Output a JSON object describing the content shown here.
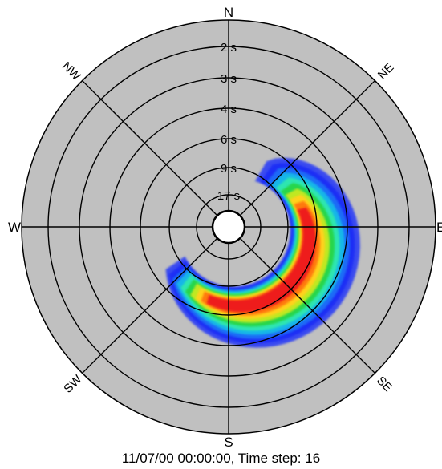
{
  "chart_data": {
    "type": "polar-contour",
    "caption": "11/07/00 00:00:00, Time step: 16",
    "directions": [
      {
        "label": "N",
        "bearing": 0
      },
      {
        "label": "NE",
        "bearing": 45
      },
      {
        "label": "E",
        "bearing": 90
      },
      {
        "label": "SE",
        "bearing": 135
      },
      {
        "label": "S",
        "bearing": 180
      },
      {
        "label": "SW",
        "bearing": 225
      },
      {
        "label": "W",
        "bearing": 270
      },
      {
        "label": "NW",
        "bearing": 315
      }
    ],
    "period_rings": [
      {
        "label": "2 s",
        "value": 2
      },
      {
        "label": "3 s",
        "value": 3
      },
      {
        "label": "4 s",
        "value": 4
      },
      {
        "label": "6 s",
        "value": 6
      },
      {
        "label": "9 s",
        "value": 9
      },
      {
        "label": "17 s",
        "value": 17
      }
    ],
    "energy_levels": [
      {
        "level": 1,
        "color": "#3a4cf0"
      },
      {
        "level": 2,
        "color": "#1f2ff5"
      },
      {
        "level": 3,
        "color": "#1d6af7"
      },
      {
        "level": 4,
        "color": "#18b6e8"
      },
      {
        "level": 5,
        "color": "#2ee6b0"
      },
      {
        "level": 6,
        "color": "#27d64c"
      },
      {
        "level": 7,
        "color": "#bfe824"
      },
      {
        "level": 8,
        "color": "#ffd21a"
      },
      {
        "level": 9,
        "color": "#ff7a10"
      },
      {
        "level": 10,
        "color": "#ee1c1c"
      }
    ],
    "energy_peak": {
      "direction_bearing": 120,
      "period_s": 6
    },
    "colors": {
      "background": "#c0c0c0",
      "lines": "#000000"
    }
  }
}
